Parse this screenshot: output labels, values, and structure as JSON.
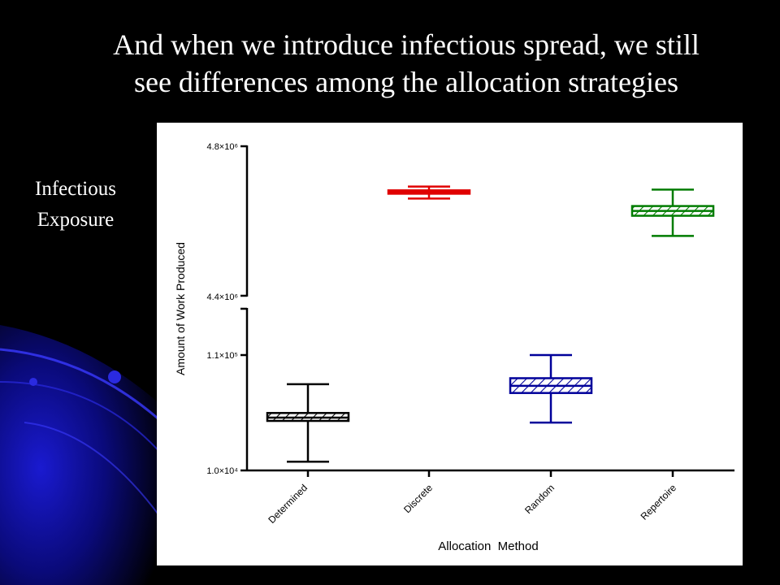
{
  "slide": {
    "title_line1": "And when we introduce infectious spread, we still",
    "title_line2": "see differences among the allocation strategies",
    "side_line1": "Infectious",
    "side_line2": "Exposure"
  },
  "chart_data": {
    "type": "box",
    "title": "",
    "xlabel": "Allocation  Method",
    "ylabel": "Amount of Work Produced",
    "categories": [
      "Determined",
      "Discrete",
      "Random",
      "Repertoire"
    ],
    "y_axis_break": true,
    "y_segments": [
      {
        "range": [
          "1.0×10⁴",
          "1.1×10⁵"
        ],
        "ticks": [
          "1.0×10⁴",
          "1.1×10⁵"
        ]
      },
      {
        "range": [
          "4.4×10⁶",
          "4.8×10⁶"
        ],
        "ticks": [
          "4.4×10⁶",
          "4.8×10⁶"
        ]
      }
    ],
    "series": [
      {
        "category": "Determined",
        "segment": 0,
        "color": "#000000",
        "min": 12000,
        "q1": 28000,
        "median": 30000,
        "q3": 33000,
        "max": 60000
      },
      {
        "category": "Discrete",
        "segment": 1,
        "color": "#e00000",
        "min": 4660000,
        "q1": 4673000,
        "median": 4677000,
        "q3": 4682000,
        "max": 4692000
      },
      {
        "category": "Random",
        "segment": 0,
        "color": "#00009a",
        "min": 27000,
        "q1": 50000,
        "median": 58000,
        "q3": 68000,
        "max": 110000
      },
      {
        "category": "Repertoire",
        "segment": 1,
        "color": "#007c00",
        "min": 4560000,
        "q1": 4614000,
        "median": 4627000,
        "q3": 4640000,
        "max": 4684000
      }
    ],
    "grid": false,
    "legend": "none"
  }
}
